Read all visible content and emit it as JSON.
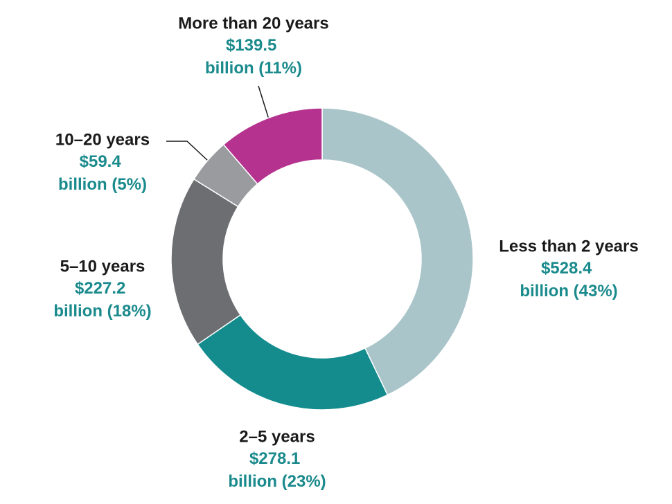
{
  "chart_data": {
    "type": "donut",
    "categories": [
      "Less than 2 years",
      "2–5 years",
      "5–10 years",
      "10–20 years",
      "More than 20 years"
    ],
    "values": [
      528.4,
      278.1,
      227.2,
      59.4,
      139.5
    ],
    "value_labels": [
      "$528.4 billion (43%)",
      "$278.1 billion (23%)",
      "$227.2 billion (18%)",
      "$59.4 billion (5%)",
      "$139.5 billion (11%)"
    ],
    "colors": [
      "#a9c5c9",
      "#148c8e",
      "#6d6e71",
      "#9a9b9e",
      "#b5338f"
    ]
  }
}
